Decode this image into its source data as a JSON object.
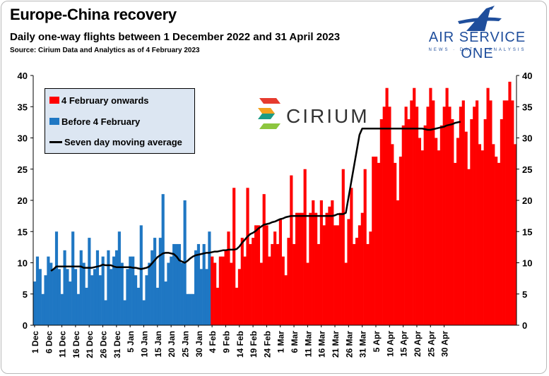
{
  "header": {
    "title": "Europe-China recovery",
    "subtitle": "Daily one-way flights between 1 December 2022 and 31 April 2023",
    "source": "Source: Cirium Data and Analytics as of 4 February 2023"
  },
  "logos": {
    "airservice_name": "AIR SERVICE ONE",
    "airservice_tagline": "NEWS · DATA · ANALYSIS",
    "cirium_name": "CIRIUM"
  },
  "colors": {
    "after": "#ff0000",
    "before": "#1f77c3",
    "average": "#000000",
    "legend_bg": "#dce6f2",
    "brand": "#1f4e9c"
  },
  "chart_data": {
    "type": "bar",
    "start_date": "2022-12-01",
    "split_index": 65,
    "legend": [
      "4 February onwards",
      "Before 4 February",
      "Seven day moving average"
    ],
    "legend_position": "top-left",
    "grid": false,
    "ylim": [
      0,
      40
    ],
    "yticks": [
      0,
      5,
      10,
      15,
      20,
      25,
      30,
      35,
      40
    ],
    "secondary_axis": true,
    "xtick_labels": [
      "1 Dec",
      "6 Dec",
      "11 Dec",
      "16 Dec",
      "21 Dec",
      "26 Dec",
      "31 Dec",
      "5 Jan",
      "10 Jan",
      "15 Jan",
      "20 Jan",
      "25 Jan",
      "30 Jan",
      "4 Feb",
      "9 Feb",
      "14 Feb",
      "19 Feb",
      "24 Feb",
      "1 Mar",
      "6 Mar",
      "11 Mar",
      "16 Mar",
      "21 Mar",
      "26 Mar",
      "31 Mar",
      "5 Apr",
      "10 Apr",
      "15 Apr",
      "20 Apr",
      "25 Apr",
      "30 Apr"
    ],
    "series": [
      {
        "name": "Before 4 February",
        "values": [
          7,
          11,
          9,
          5,
          8,
          11,
          10,
          9,
          15,
          9,
          5,
          12,
          9,
          7,
          15,
          9,
          5,
          12,
          10,
          6,
          14,
          8,
          9,
          12,
          8,
          11,
          4,
          12,
          9,
          11,
          12,
          15,
          10,
          4,
          9,
          11,
          11,
          8,
          6,
          16,
          4,
          8,
          10,
          12,
          14,
          6,
          14,
          21,
          7,
          10,
          11,
          13,
          13,
          13,
          10,
          20,
          5,
          5,
          5,
          12,
          13,
          9,
          13,
          9,
          15
        ]
      },
      {
        "name": "4 February onwards",
        "values": [
          11,
          10,
          6,
          11,
          11,
          12,
          15,
          10,
          22,
          6,
          9,
          14,
          11,
          22,
          13,
          14,
          16,
          16,
          10,
          21,
          16,
          11,
          13,
          15,
          13,
          17,
          11,
          8,
          14,
          24,
          13,
          18,
          18,
          18,
          25,
          10,
          18,
          20,
          18,
          13,
          20,
          16,
          18,
          19,
          20,
          16,
          16,
          18,
          25,
          10,
          17,
          22,
          13,
          14,
          16,
          18,
          25,
          13,
          15,
          27,
          27,
          26,
          33,
          35,
          38,
          35,
          29,
          26,
          20,
          27,
          32,
          35,
          33,
          36,
          38,
          35,
          30,
          28,
          32,
          35,
          38,
          36,
          30,
          28,
          32,
          35,
          38,
          35,
          33,
          26,
          30,
          35,
          36,
          31,
          25,
          33,
          35,
          36,
          29,
          28,
          33,
          38,
          36,
          29,
          27,
          26,
          33,
          36,
          36,
          39,
          36,
          29
        ]
      },
      {
        "name": "Seven day moving average",
        "values": [
          null,
          null,
          null,
          null,
          null,
          null,
          8.7,
          9.0,
          9.4,
          9.4,
          9.4,
          9.4,
          9.4,
          9.4,
          9.4,
          9.4,
          9.4,
          9.4,
          9.2,
          9.2,
          9.2,
          9.2,
          9.3,
          9.4,
          9.5,
          9.7,
          9.6,
          9.6,
          9.6,
          9.4,
          9.3,
          9.3,
          9.3,
          9.3,
          9.3,
          9.3,
          9.2,
          9.2,
          9.1,
          9.0,
          9.1,
          9.2,
          9.4,
          9.9,
          10.4,
          10.9,
          11.2,
          11.5,
          11.6,
          11.6,
          11.5,
          11.4,
          11.0,
          10.4,
          10.2,
          10.0,
          10.3,
          10.7,
          11.0,
          11.2,
          11.3,
          11.4,
          11.5,
          11.6,
          11.6,
          11.7,
          11.8,
          11.8,
          11.9,
          12.0,
          12.0,
          12.1,
          12.1,
          12.1,
          12.2,
          12.6,
          13.2,
          13.7,
          14.2,
          14.6,
          14.8,
          15.1,
          15.5,
          15.8,
          16.1,
          16.2,
          16.3,
          16.5,
          16.6,
          16.8,
          17.0,
          17.1,
          17.3,
          17.4,
          17.5,
          17.5,
          17.5,
          17.5,
          17.5,
          17.5,
          17.5,
          17.5,
          17.5,
          17.5,
          17.5,
          17.5,
          17.5,
          17.5,
          17.5,
          17.5,
          17.6,
          17.8,
          17.8,
          17.8,
          18.0,
          20.5,
          23.0,
          25.5,
          28.0,
          30.5,
          31.5,
          31.5,
          31.5,
          31.5,
          31.5,
          31.5,
          31.5,
          31.5,
          31.5,
          31.5,
          31.5,
          31.5,
          31.5,
          31.5,
          31.5,
          31.5,
          31.5,
          31.5,
          31.5,
          31.5,
          31.5,
          31.5,
          31.5,
          31.4,
          31.3,
          31.3,
          31.4,
          31.5,
          31.6,
          31.7,
          31.8,
          32.0,
          32.1,
          32.2,
          32.4,
          32.5,
          32.6
        ]
      }
    ]
  }
}
